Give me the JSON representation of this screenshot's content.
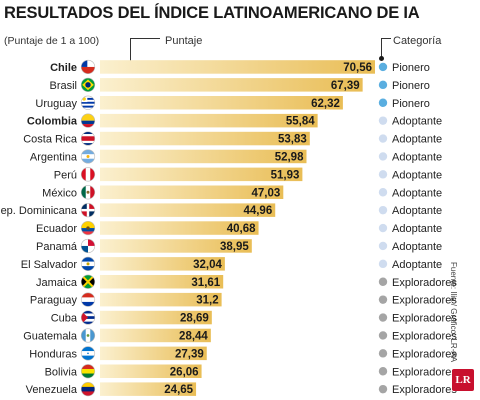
{
  "header": {
    "title": "RESULTADOS DEL ÍNDICE LATINOAMERICANO DE IA",
    "subtitle": "(Puntaje de 1 a 100)",
    "score_header": "Puntaje",
    "category_header": "Categoría"
  },
  "source": "Fuente: Ilia / Gráfico: LR-AA",
  "logo": "LR",
  "colors": {
    "bar_gradient_start": "#fbf0cf",
    "bar_gradient_end": "#e9bd55",
    "pionero": "#5aaee0",
    "adoptante": "#cfdcef",
    "exploradores": "#a5a5a5"
  },
  "chart_data": {
    "type": "bar",
    "orientation": "horizontal",
    "title": "RESULTADOS DEL ÍNDICE LATINOAMERICANO DE IA",
    "subtitle": "(Puntaje de 1 a 100)",
    "xlabel": "Puntaje",
    "ylabel": "",
    "xlim": [
      0,
      100
    ],
    "grid": false,
    "categories": [
      "Chile",
      "Brasil",
      "Uruguay",
      "Colombia",
      "Costa Rica",
      "Argentina",
      "Perú",
      "México",
      "Rep. Dominicana",
      "Ecuador",
      "Panamá",
      "El Salvador",
      "Jamaica",
      "Paraguay",
      "Cuba",
      "Guatemala",
      "Honduras",
      "Bolivia",
      "Venezuela"
    ],
    "values": [
      70.56,
      67.39,
      62.32,
      55.84,
      53.83,
      52.98,
      51.93,
      47.03,
      44.96,
      40.68,
      38.95,
      32.04,
      31.61,
      31.2,
      28.69,
      28.44,
      27.39,
      26.06,
      24.65
    ],
    "value_labels": [
      "70,56",
      "67,39",
      "62,32",
      "55,84",
      "53,83",
      "52,98",
      "51,93",
      "47,03",
      "44,96",
      "40,68",
      "38,95",
      "32,04",
      "31,61",
      "31,2",
      "28,69",
      "28,44",
      "27,39",
      "26,06",
      "24,65"
    ],
    "bold_categories": [
      "Chile",
      "Colombia"
    ],
    "flags": [
      "flag-chile-icon",
      "flag-brazil-icon",
      "flag-uruguay-icon",
      "flag-colombia-icon",
      "flag-costa-rica-icon",
      "flag-argentina-icon",
      "flag-peru-icon",
      "flag-mexico-icon",
      "flag-dominican-republic-icon",
      "flag-ecuador-icon",
      "flag-panama-icon",
      "flag-el-salvador-icon",
      "flag-jamaica-icon",
      "flag-paraguay-icon",
      "flag-cuba-icon",
      "flag-guatemala-icon",
      "flag-honduras-icon",
      "flag-bolivia-icon",
      "flag-venezuela-icon"
    ],
    "category_groups": [
      "Pionero",
      "Pionero",
      "Pionero",
      "Adoptante",
      "Adoptante",
      "Adoptante",
      "Adoptante",
      "Adoptante",
      "Adoptante",
      "Adoptante",
      "Adoptante",
      "Adoptante",
      "Exploradores",
      "Exploradores",
      "Exploradores",
      "Exploradores",
      "Exploradores",
      "Exploradores",
      "Exploradores"
    ]
  }
}
